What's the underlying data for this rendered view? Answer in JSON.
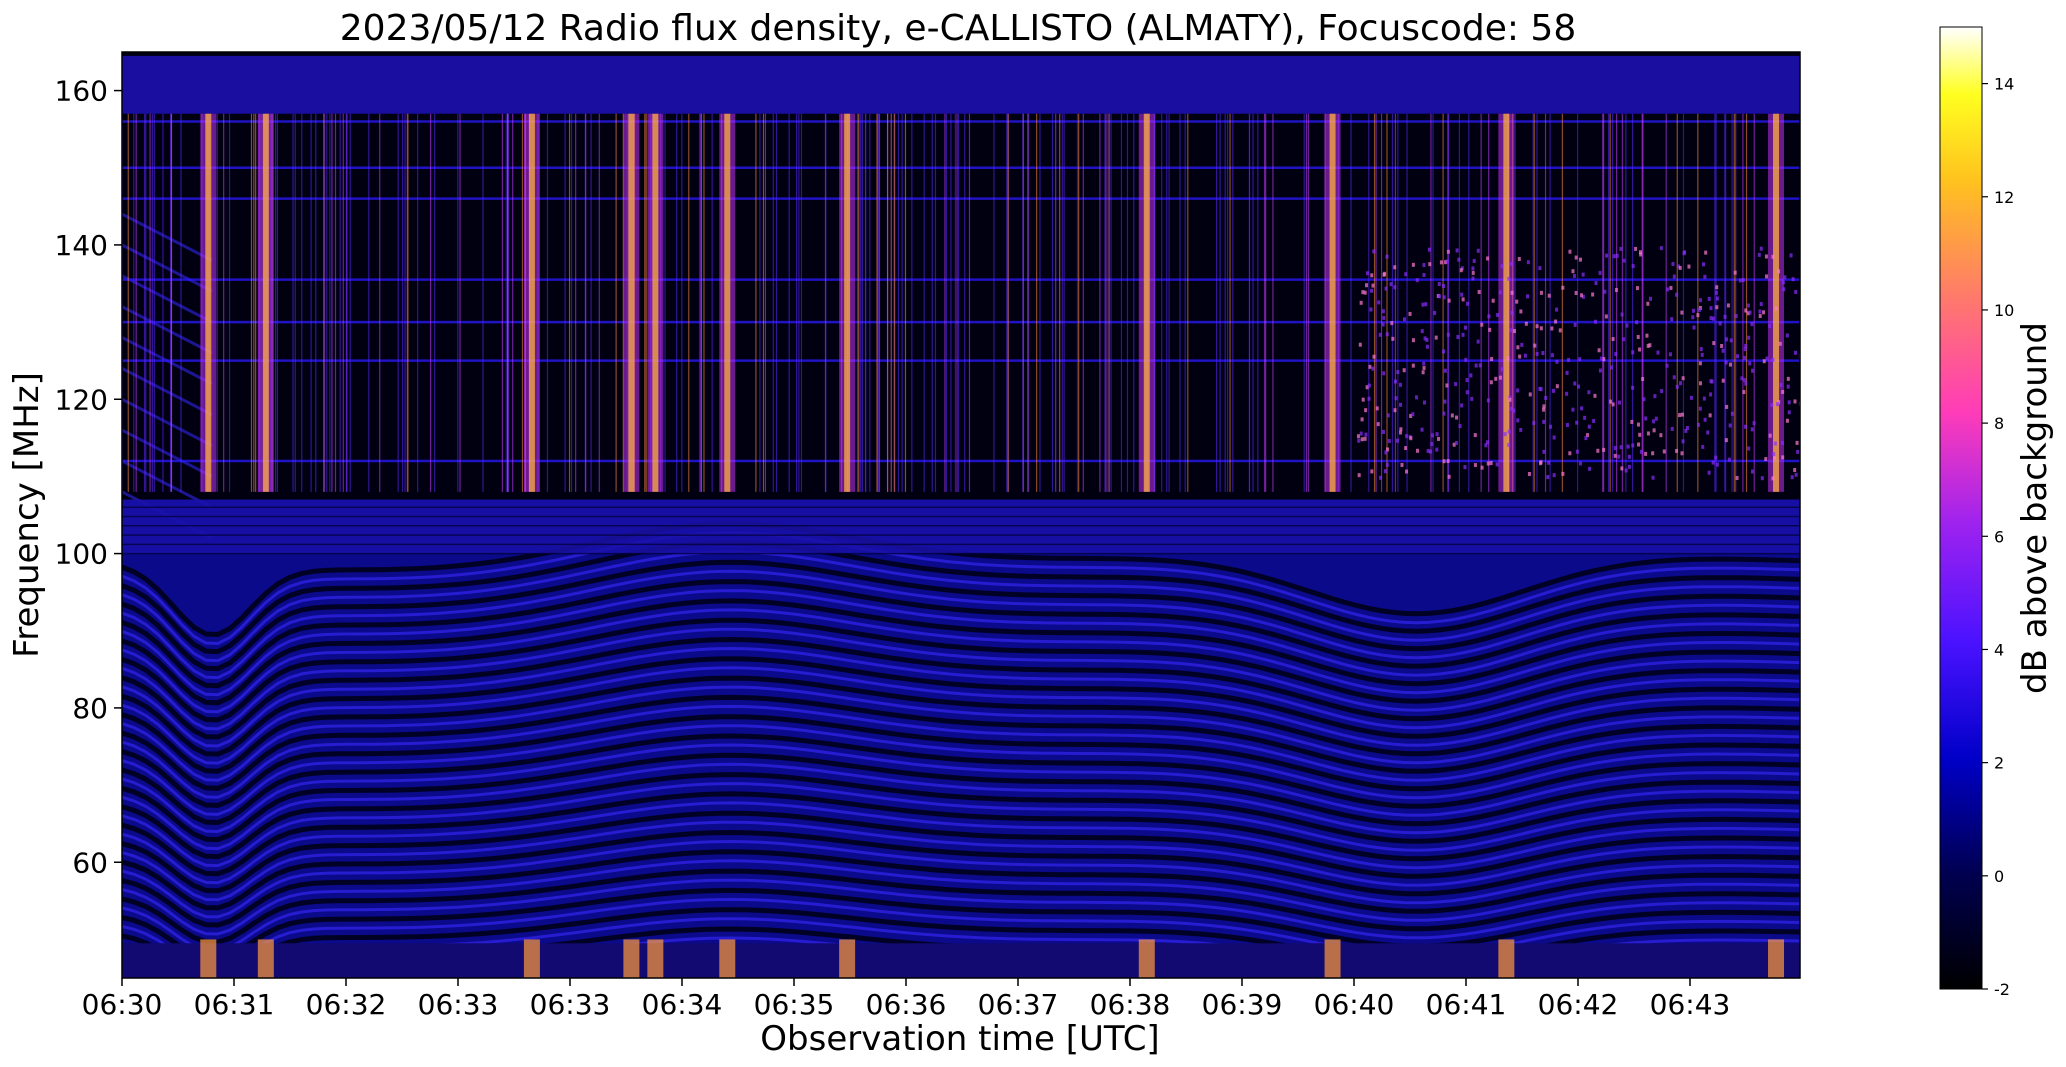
{
  "chart_data": {
    "type": "heatmap",
    "title": "2023/05/12  Radio flux density, e-CALLISTO (ALMATY), Focuscode: 58",
    "xlabel": "Observation time [UTC]",
    "ylabel": "Frequency [MHz]",
    "colorbar_label": "dB above background",
    "x_ticks": [
      "06:30",
      "06:31",
      "06:32",
      "06:33",
      "06:33",
      "06:34",
      "06:35",
      "06:36",
      "06:37",
      "06:38",
      "06:39",
      "06:40",
      "06:41",
      "06:42",
      "06:43"
    ],
    "y_ticks": [
      60,
      80,
      100,
      120,
      140,
      160
    ],
    "ylim": [
      45,
      165
    ],
    "colorbar_ticks": [
      -2,
      0,
      2,
      4,
      6,
      8,
      10,
      12,
      14
    ],
    "colorbar_range": [
      -2,
      15
    ],
    "colormap": "gnuplot2",
    "burst_columns_minutes": [
      0.72,
      1.2,
      3.42,
      4.25,
      4.45,
      5.05,
      6.05,
      8.55,
      10.1,
      11.55,
      13.8
    ],
    "rfi_band_mhz": [
      100,
      107
    ]
  },
  "colors": {
    "background": "#000000",
    "low": "#000010",
    "mid": "#3a1aff",
    "high": "#ffffff"
  }
}
